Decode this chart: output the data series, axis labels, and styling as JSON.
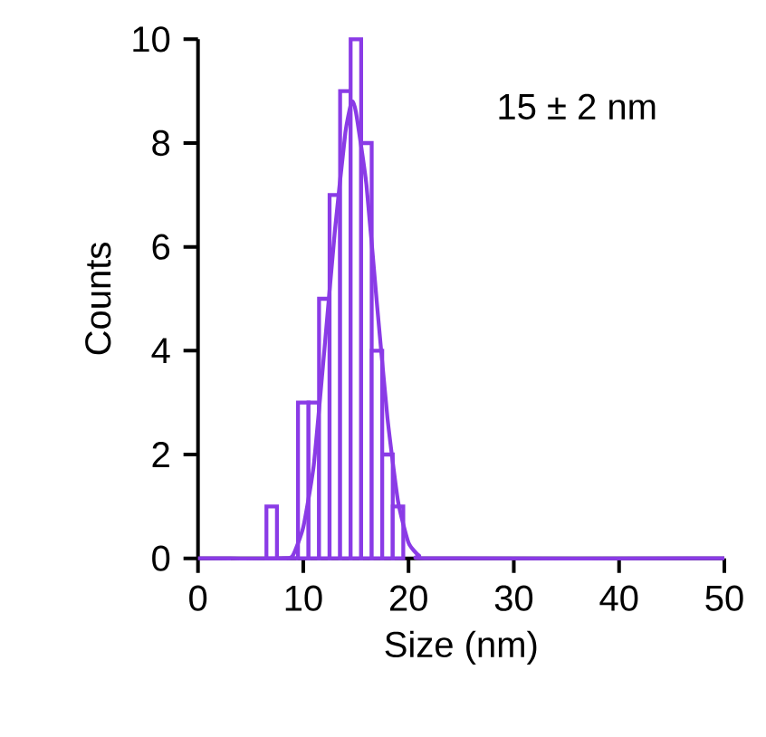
{
  "chart_data": {
    "type": "histogram",
    "xlabel": "Size (nm)",
    "ylabel": "Counts",
    "annotations": [
      "15 ± 2 nm"
    ],
    "series": [
      {
        "type": "histogram",
        "color": "#8a3be6",
        "bins": [
          6.5,
          7.5,
          8.5,
          9.5,
          10.5,
          11.5,
          12.5,
          13.5,
          14.5,
          15.5,
          16.5,
          17.5,
          18.5,
          19.5
        ],
        "values": [
          1,
          0,
          0,
          3,
          3,
          5,
          7,
          9,
          10,
          8,
          4,
          2,
          1
        ]
      },
      {
        "type": "line",
        "color": "#8a3be6",
        "x": [
          0,
          8,
          9,
          10,
          11,
          12,
          13,
          14,
          14.6,
          15,
          16,
          17,
          18,
          19,
          20,
          21,
          22,
          50
        ],
        "values": [
          0,
          0,
          0.05,
          0.6,
          1.8,
          4,
          6.3,
          8.2,
          8.8,
          8.6,
          7.2,
          4.9,
          2.7,
          1.1,
          0.3,
          0.05,
          0,
          0
        ]
      }
    ],
    "xlim": [
      0,
      50
    ],
    "ylim": [
      0,
      10
    ],
    "xticks": [
      0,
      10,
      20,
      30,
      40,
      50
    ],
    "yticks": [
      0,
      2,
      4,
      6,
      8,
      10
    ],
    "grid": false
  }
}
